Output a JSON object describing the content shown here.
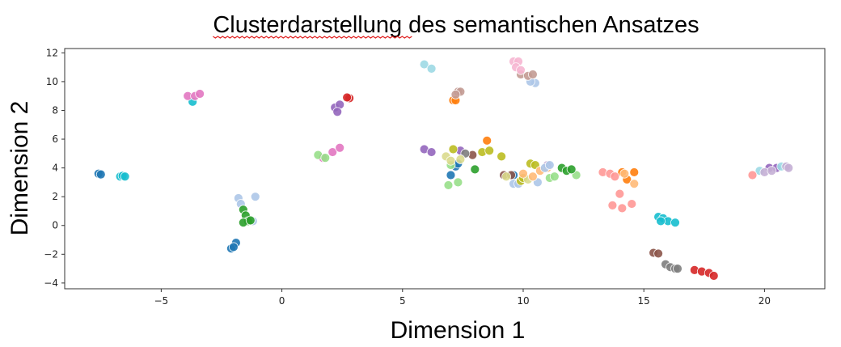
{
  "chart_data": {
    "type": "scatter",
    "title": "Clusterdarstellung des semantischen Ansatzes",
    "xlabel": "Dimension 1",
    "ylabel": "Dimension 2",
    "xlim": [
      -9,
      22.5
    ],
    "ylim": [
      -4.4,
      12.3
    ],
    "xticks": [
      -5,
      0,
      5,
      10,
      15,
      20
    ],
    "yticks": [
      -4,
      -2,
      0,
      2,
      4,
      6,
      8,
      10,
      12
    ],
    "grid": false,
    "legend": "none",
    "series": [
      {
        "color": "#1f77b4",
        "points": [
          [
            -7.6,
            3.6
          ],
          [
            -7.5,
            3.55
          ],
          [
            -1.9,
            -1.2
          ],
          [
            -2.1,
            -1.6
          ],
          [
            -2.0,
            -1.5
          ],
          [
            7.0,
            3.5
          ],
          [
            7.2,
            4.1
          ],
          [
            7.3,
            4.3
          ],
          [
            9.6,
            3.5
          ]
        ]
      },
      {
        "color": "#17becf",
        "points": [
          [
            -6.7,
            3.4
          ],
          [
            -6.6,
            3.45
          ],
          [
            -6.5,
            3.4
          ],
          [
            -3.7,
            8.6
          ],
          [
            15.6,
            0.6
          ],
          [
            15.8,
            0.5
          ],
          [
            16.0,
            0.3
          ],
          [
            16.3,
            0.2
          ],
          [
            15.7,
            0.3
          ]
        ]
      },
      {
        "color": "#e377c2",
        "points": [
          [
            -3.9,
            9.0
          ],
          [
            -3.6,
            9.0
          ],
          [
            -3.4,
            9.15
          ],
          [
            1.7,
            4.7
          ],
          [
            2.1,
            5.1
          ],
          [
            2.4,
            5.4
          ]
        ]
      },
      {
        "color": "#9467bd",
        "points": [
          [
            2.2,
            8.2
          ],
          [
            2.4,
            8.4
          ],
          [
            2.3,
            7.9
          ],
          [
            5.9,
            5.3
          ],
          [
            6.2,
            5.1
          ],
          [
            7.4,
            5.2
          ],
          [
            20.2,
            4.0
          ],
          [
            20.5,
            4.0
          ]
        ]
      },
      {
        "color": "#d62728",
        "points": [
          [
            2.8,
            8.85
          ],
          [
            2.7,
            8.9
          ],
          [
            17.1,
            -3.1
          ],
          [
            17.4,
            -3.2
          ],
          [
            17.7,
            -3.3
          ],
          [
            17.9,
            -3.5
          ]
        ]
      },
      {
        "color": "#98df8a",
        "points": [
          [
            1.5,
            4.9
          ],
          [
            1.8,
            4.7
          ],
          [
            7.0,
            4.2
          ],
          [
            6.9,
            2.8
          ],
          [
            7.3,
            3.0
          ],
          [
            11.1,
            3.3
          ],
          [
            11.3,
            3.4
          ],
          [
            12.2,
            3.5
          ]
        ]
      },
      {
        "color": "#aec7e8",
        "points": [
          [
            -1.8,
            1.9
          ],
          [
            -1.7,
            1.5
          ],
          [
            -1.1,
            2.0
          ],
          [
            -1.2,
            0.3
          ],
          [
            9.6,
            2.9
          ],
          [
            9.8,
            2.9
          ],
          [
            10.6,
            3.0
          ],
          [
            10.5,
            9.9
          ],
          [
            10.3,
            10.0
          ]
        ]
      },
      {
        "color": "#2ca02c",
        "points": [
          [
            -1.6,
            1.1
          ],
          [
            -1.5,
            0.7
          ],
          [
            -1.4,
            0.3
          ],
          [
            -1.6,
            0.2
          ],
          [
            -1.3,
            0.35
          ],
          [
            8.0,
            3.9
          ],
          [
            11.6,
            4.0
          ],
          [
            11.8,
            3.8
          ],
          [
            12.0,
            3.9
          ]
        ]
      },
      {
        "color": "#9edae5",
        "points": [
          [
            5.9,
            11.2
          ],
          [
            6.2,
            10.9
          ],
          [
            20.7,
            4.1
          ],
          [
            19.8,
            3.8
          ]
        ]
      },
      {
        "color": "#ff7f0e",
        "points": [
          [
            7.1,
            8.7
          ],
          [
            7.2,
            8.7
          ],
          [
            8.5,
            5.9
          ],
          [
            14.1,
            3.7
          ],
          [
            14.3,
            3.2
          ],
          [
            14.6,
            3.7
          ]
        ]
      },
      {
        "color": "#c49c94",
        "points": [
          [
            7.3,
            9.3
          ],
          [
            7.4,
            9.3
          ],
          [
            7.2,
            9.1
          ],
          [
            9.9,
            10.5
          ],
          [
            10.2,
            10.4
          ],
          [
            10.4,
            10.5
          ]
        ]
      },
      {
        "color": "#f7b6d2",
        "points": [
          [
            9.6,
            11.4
          ],
          [
            9.8,
            11.4
          ],
          [
            9.7,
            11.0
          ],
          [
            9.9,
            10.8
          ]
        ]
      },
      {
        "color": "#8c564b",
        "points": [
          [
            7.9,
            4.9
          ],
          [
            9.2,
            3.5
          ],
          [
            9.5,
            3.5
          ],
          [
            15.4,
            -1.9
          ],
          [
            15.6,
            -1.95
          ]
        ]
      },
      {
        "color": "#7f7f7f",
        "points": [
          [
            7.6,
            5.0
          ],
          [
            15.9,
            -2.7
          ],
          [
            16.1,
            -2.9
          ],
          [
            16.3,
            -3.0
          ],
          [
            16.4,
            -3.0
          ]
        ]
      },
      {
        "color": "#bcbd22",
        "points": [
          [
            7.1,
            5.3
          ],
          [
            8.3,
            5.1
          ],
          [
            8.6,
            5.2
          ],
          [
            9.1,
            4.8
          ],
          [
            10.3,
            4.3
          ],
          [
            10.5,
            4.2
          ],
          [
            9.9,
            3.1
          ],
          [
            10.0,
            3.3
          ]
        ]
      },
      {
        "color": "#dbdb8d",
        "points": [
          [
            6.8,
            4.8
          ],
          [
            7.0,
            4.5
          ],
          [
            7.4,
            4.6
          ],
          [
            9.3,
            3.4
          ],
          [
            10.2,
            3.2
          ]
        ]
      },
      {
        "color": "#ff9896",
        "points": [
          [
            13.3,
            3.7
          ],
          [
            13.6,
            3.6
          ],
          [
            13.8,
            3.4
          ],
          [
            14.0,
            2.2
          ],
          [
            13.7,
            1.4
          ],
          [
            14.1,
            1.2
          ],
          [
            14.5,
            1.5
          ],
          [
            19.5,
            3.5
          ]
        ]
      },
      {
        "color": "#ffbb78",
        "points": [
          [
            10.0,
            3.6
          ],
          [
            10.4,
            3.4
          ],
          [
            10.7,
            3.8
          ],
          [
            11.0,
            4.0
          ],
          [
            14.2,
            3.6
          ],
          [
            14.6,
            2.9
          ]
        ]
      },
      {
        "color": "#c5b0d5",
        "points": [
          [
            20.0,
            3.7
          ],
          [
            20.3,
            3.8
          ],
          [
            20.9,
            4.1
          ],
          [
            21.0,
            4.0
          ],
          [
            11.0,
            4.2
          ]
        ]
      },
      {
        "color": "#aec7e8",
        "points": [
          [
            10.9,
            4.0
          ],
          [
            11.1,
            4.2
          ]
        ]
      }
    ]
  }
}
